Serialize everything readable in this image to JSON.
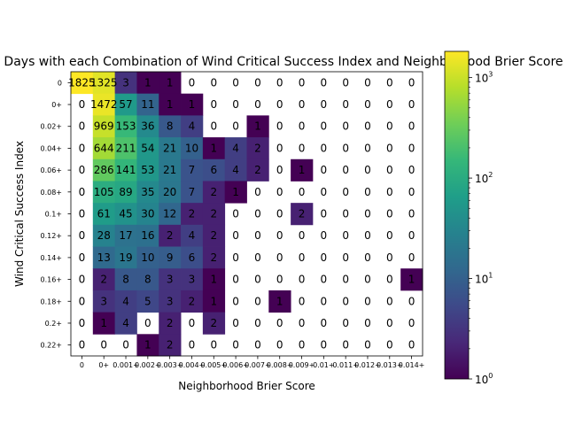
{
  "chart_data": {
    "type": "heatmap",
    "title": "Days with each Combination of Wind Critical Success Index and Neighborhood Brier Score",
    "xlabel": "Neighborhood Brier Score",
    "ylabel": "Wind Critical Success Index",
    "x_categories": [
      "0",
      "0+",
      "0.001+",
      "0.002+",
      "0.003+",
      "0.004+",
      "0.005+",
      "0.006+",
      "0.007+",
      "0.008+",
      "0.009+",
      "0.01+",
      "0.011+",
      "0.012+",
      "0.013+",
      "0.014+"
    ],
    "y_categories": [
      "0",
      "0+",
      "0.02+",
      "0.04+",
      "0.06+",
      "0.08+",
      "0.1+",
      "0.12+",
      "0.14+",
      "0.16+",
      "0.18+",
      "0.2+",
      "0.22+"
    ],
    "values": [
      [
        1825,
        1325,
        3,
        1,
        1,
        0,
        0,
        0,
        0,
        0,
        0,
        0,
        0,
        0,
        0,
        0
      ],
      [
        0,
        1472,
        57,
        11,
        1,
        1,
        0,
        0,
        0,
        0,
        0,
        0,
        0,
        0,
        0,
        0
      ],
      [
        0,
        969,
        153,
        36,
        8,
        4,
        0,
        0,
        1,
        0,
        0,
        0,
        0,
        0,
        0,
        0
      ],
      [
        0,
        644,
        211,
        54,
        21,
        10,
        1,
        4,
        2,
        0,
        0,
        0,
        0,
        0,
        0,
        0
      ],
      [
        0,
        286,
        141,
        53,
        21,
        7,
        6,
        4,
        2,
        0,
        1,
        0,
        0,
        0,
        0,
        0
      ],
      [
        0,
        105,
        89,
        35,
        20,
        7,
        2,
        1,
        0,
        0,
        0,
        0,
        0,
        0,
        0,
        0
      ],
      [
        0,
        61,
        45,
        30,
        12,
        2,
        2,
        0,
        0,
        0,
        2,
        0,
        0,
        0,
        0,
        0
      ],
      [
        0,
        28,
        17,
        16,
        2,
        4,
        2,
        0,
        0,
        0,
        0,
        0,
        0,
        0,
        0,
        0
      ],
      [
        0,
        13,
        19,
        10,
        9,
        6,
        2,
        0,
        0,
        0,
        0,
        0,
        0,
        0,
        0,
        0
      ],
      [
        0,
        2,
        8,
        8,
        3,
        3,
        1,
        0,
        0,
        0,
        0,
        0,
        0,
        0,
        0,
        1
      ],
      [
        0,
        3,
        4,
        5,
        3,
        2,
        1,
        0,
        0,
        1,
        0,
        0,
        0,
        0,
        0,
        0
      ],
      [
        0,
        1,
        4,
        0,
        2,
        0,
        2,
        0,
        0,
        0,
        0,
        0,
        0,
        0,
        0,
        0
      ],
      [
        0,
        0,
        0,
        1,
        2,
        0,
        0,
        0,
        0,
        0,
        0,
        0,
        0,
        0,
        0,
        0
      ]
    ],
    "color_scale": "log",
    "colormap": "viridis",
    "zero_cells": "transparent",
    "colorbar_range": [
      1,
      1825
    ],
    "colorbar_ticks": [
      {
        "value": 1,
        "base": "10",
        "exp": "0"
      },
      {
        "value": 10,
        "base": "10",
        "exp": "1"
      },
      {
        "value": 100,
        "base": "10",
        "exp": "2"
      },
      {
        "value": 1000,
        "base": "10",
        "exp": "3"
      }
    ],
    "colors": {
      "viridis": [
        "#440154",
        "#482878",
        "#3e4989",
        "#31688e",
        "#26828e",
        "#1f9e89",
        "#35b779",
        "#6ece58",
        "#b5de2b",
        "#fde725"
      ]
    }
  }
}
